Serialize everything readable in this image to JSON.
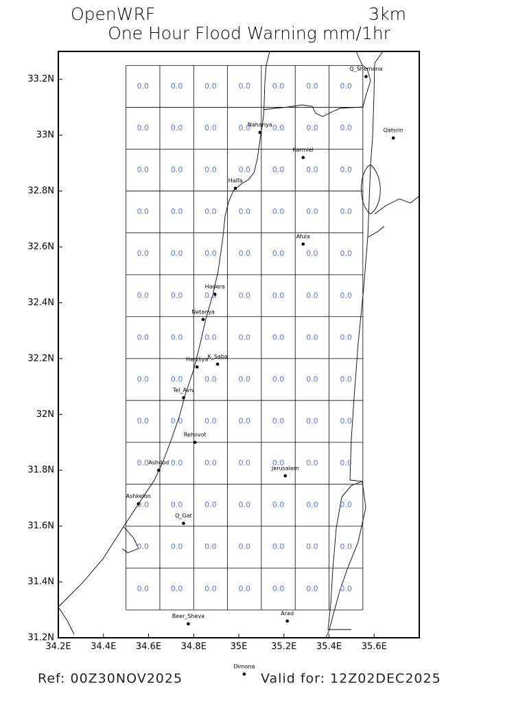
{
  "chart_data": {
    "type": "map",
    "title": "OpenWRF",
    "resolution": "3km",
    "subtitle": "One Hour Flood Warning mm/1hr",
    "ref": "Ref: 00Z30NOV2025",
    "valid": "Valid for: 12Z02DEC2025",
    "value_color": "#5a78e0",
    "xlim": [
      34.2,
      35.8
    ],
    "ylim": [
      31.2,
      33.3
    ],
    "xticks": [
      {
        "value": 34.2,
        "label": "34.2E"
      },
      {
        "value": 34.4,
        "label": "34.4E"
      },
      {
        "value": 34.6,
        "label": "34.6E"
      },
      {
        "value": 34.8,
        "label": "34.8E"
      },
      {
        "value": 35,
        "label": "35E"
      },
      {
        "value": 35.2,
        "label": "35.2E"
      },
      {
        "value": 35.4,
        "label": "35.4E"
      },
      {
        "value": 35.6,
        "label": "35.6E"
      }
    ],
    "yticks": [
      {
        "value": 31.2,
        "label": "31.2N"
      },
      {
        "value": 31.4,
        "label": "31.4N"
      },
      {
        "value": 31.6,
        "label": "31.6N"
      },
      {
        "value": 31.8,
        "label": "31.8N"
      },
      {
        "value": 32,
        "label": "32N"
      },
      {
        "value": 32.2,
        "label": "32.2N"
      },
      {
        "value": 32.4,
        "label": "32.4N"
      },
      {
        "value": 32.6,
        "label": "32.6N"
      },
      {
        "value": 32.8,
        "label": "32.8N"
      },
      {
        "value": 33,
        "label": "33N"
      },
      {
        "value": 33.2,
        "label": "33.2N"
      }
    ],
    "lon_edges": [
      34.5,
      34.65,
      34.8,
      34.95,
      35.1,
      35.25,
      35.4,
      35.55
    ],
    "lat_edges": [
      33.25,
      33.1,
      32.95,
      32.8,
      32.65,
      32.5,
      32.35,
      32.2,
      32.05,
      31.9,
      31.75,
      31.6,
      31.45,
      31.3
    ],
    "values": [
      [
        0,
        0,
        0,
        0,
        0,
        0,
        0
      ],
      [
        0,
        0,
        0,
        0,
        0,
        0,
        0
      ],
      [
        0,
        0,
        0,
        0,
        0,
        0,
        0
      ],
      [
        0,
        0,
        0,
        0,
        0,
        0,
        0
      ],
      [
        0,
        0,
        0,
        0,
        0,
        0,
        0
      ],
      [
        0,
        0,
        0,
        0,
        0,
        0,
        0
      ],
      [
        0,
        0,
        0,
        0,
        0,
        0,
        0
      ],
      [
        0,
        0,
        0,
        0,
        0,
        0,
        0
      ],
      [
        0,
        0,
        0,
        0,
        0,
        0,
        0
      ],
      [
        0,
        0,
        0,
        0,
        0,
        0,
        0
      ],
      [
        0,
        0,
        0,
        0,
        0,
        0,
        0
      ],
      [
        0,
        0,
        0,
        0,
        0,
        0,
        0
      ],
      [
        0,
        0,
        0,
        0,
        0,
        0,
        0
      ]
    ],
    "value_labels": [
      [
        "0.0",
        "0.0",
        "0.0",
        "0.0",
        "0.0",
        "0.0",
        "0.0"
      ],
      [
        "0.0",
        "0.0",
        "0.0",
        "0.0",
        "0.0",
        "0.0",
        "0.0"
      ],
      [
        "0.0",
        "0.0",
        "0.0",
        "0.0",
        "0.0",
        "0.0",
        "0.0"
      ],
      [
        "0.0",
        "0.0",
        "0.0",
        "0.0",
        "0.0",
        "0.0",
        "0.0"
      ],
      [
        "0.0",
        "0.0",
        "0.0",
        "0.0",
        "0.0",
        "0.0",
        "0.0"
      ],
      [
        "0.0",
        "0.0",
        "0.0",
        "0.0",
        "0.0",
        "0.0",
        "0.0"
      ],
      [
        "0.0",
        "0.0",
        "0.0",
        "0.0",
        "0.0",
        "0.0",
        "0.0"
      ],
      [
        "0.0",
        "0.0",
        "0.0",
        "0.0",
        "0.0",
        "0.0",
        "0.0"
      ],
      [
        "0.0",
        "0.0",
        "0.0",
        "0.0",
        "0.0",
        "0.0",
        "0.0"
      ],
      [
        "0.0",
        "0.0",
        "0.0",
        "0.0",
        "0.0",
        "0.0",
        "0.0"
      ],
      [
        "0.0",
        "0.0",
        "0.0",
        "0.0",
        "0.0",
        "0.0",
        "0.0"
      ],
      [
        "0.0",
        "0.0",
        "0.0",
        "0.0",
        "0.0",
        "0.0",
        "0.0"
      ],
      [
        "0.0",
        "0.0",
        "0.0",
        "0.0",
        "0.0",
        "0.0",
        "0.0"
      ]
    ],
    "cities": [
      {
        "name": "Q_Shemona",
        "lon": 35.564,
        "lat": 33.21
      },
      {
        "name": "Qatsrin",
        "lon": 35.685,
        "lat": 32.99
      },
      {
        "name": "Nahariya",
        "lon": 35.094,
        "lat": 33.01
      },
      {
        "name": "Karmiel",
        "lon": 35.285,
        "lat": 32.92
      },
      {
        "name": "Haifa",
        "lon": 34.985,
        "lat": 32.81
      },
      {
        "name": "Afula",
        "lon": 35.285,
        "lat": 32.61
      },
      {
        "name": "Hadera",
        "lon": 34.894,
        "lat": 32.43
      },
      {
        "name": "Netanya",
        "lon": 34.842,
        "lat": 32.34
      },
      {
        "name": "Herzliya",
        "lon": 34.815,
        "lat": 32.17
      },
      {
        "name": "K_Saba",
        "lon": 34.906,
        "lat": 32.18
      },
      {
        "name": "Tel_Aviv",
        "lon": 34.755,
        "lat": 32.06
      },
      {
        "name": "Rehovot",
        "lon": 34.806,
        "lat": 31.9
      },
      {
        "name": "Ashdod",
        "lon": 34.645,
        "lat": 31.8
      },
      {
        "name": "Jerusalem",
        "lon": 35.206,
        "lat": 31.78
      },
      {
        "name": "Ashkelon",
        "lon": 34.555,
        "lat": 31.68
      },
      {
        "name": "Q_Gat",
        "lon": 34.755,
        "lat": 31.61
      },
      {
        "name": "Beer_Sheva",
        "lon": 34.776,
        "lat": 31.25
      },
      {
        "name": "Arad",
        "lon": 35.215,
        "lat": 31.26
      },
      {
        "name": "Dimona",
        "lon": 35.024,
        "lat": 31.07
      }
    ]
  }
}
